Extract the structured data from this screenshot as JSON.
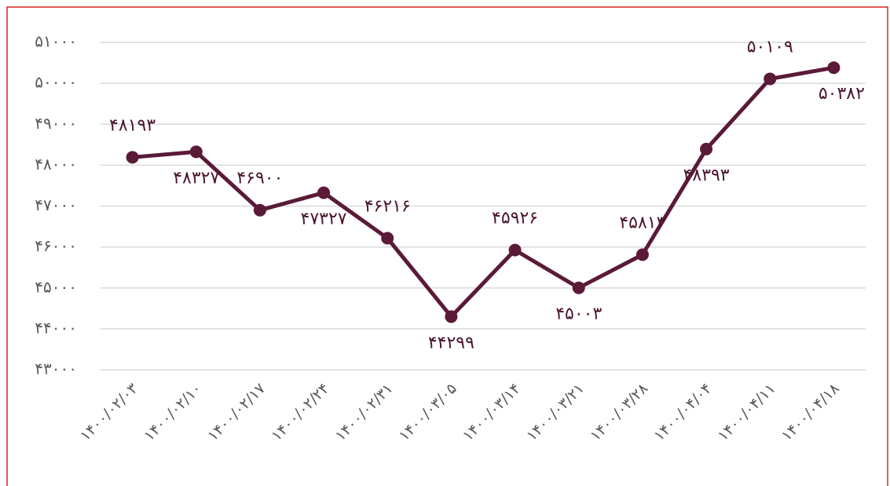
{
  "chart_data": {
    "type": "line",
    "categories": [
      "۱۴۰۰/۰۲/۰۳",
      "۱۴۰۰/۰۲/۱۰",
      "۱۴۰۰/۰۲/۱۷",
      "۱۴۰۰/۰۲/۲۴",
      "۱۴۰۰/۰۲/۳۱",
      "۱۴۰۰/۰۳/۰۵",
      "۱۴۰۰/۰۳/۱۴",
      "۱۴۰۰/۰۳/۲۱",
      "۱۴۰۰/۰۳/۲۸",
      "۱۴۰۰/۰۴/۰۴",
      "۱۴۰۰/۰۴/۱۱",
      "۱۴۰۰/۰۴/۱۸"
    ],
    "values": [
      48193,
      48327,
      46900,
      47327,
      46216,
      44299,
      45926,
      45003,
      45813,
      48393,
      50109,
      50382
    ],
    "value_labels": [
      "۴۸۱۹۳",
      "۴۸۳۲۷",
      "۴۶۹۰۰",
      "۴۷۳۲۷",
      "۴۶۲۱۶",
      "۴۴۲۹۹",
      "۴۵۹۲۶",
      "۴۵۰۰۳",
      "۴۵۸۱۳",
      "۴۸۳۹۳",
      "۵۰۱۰۹",
      "۵۰۳۸۲"
    ],
    "color": "#5a1a38",
    "ylim": [
      43000,
      51000
    ],
    "yticks": [
      {
        "value": 43000,
        "label": "۴۳۰۰۰"
      },
      {
        "value": 44000,
        "label": "۴۴۰۰۰"
      },
      {
        "value": 45000,
        "label": "۴۵۰۰۰"
      },
      {
        "value": 46000,
        "label": "۴۶۰۰۰"
      },
      {
        "value": 47000,
        "label": "۴۷۰۰۰"
      },
      {
        "value": 48000,
        "label": "۴۸۰۰۰"
      },
      {
        "value": 49000,
        "label": "۴۹۰۰۰"
      },
      {
        "value": 50000,
        "label": "۵۰۰۰۰"
      },
      {
        "value": 51000,
        "label": "۵۱۰۰۰"
      }
    ],
    "grid": true
  }
}
